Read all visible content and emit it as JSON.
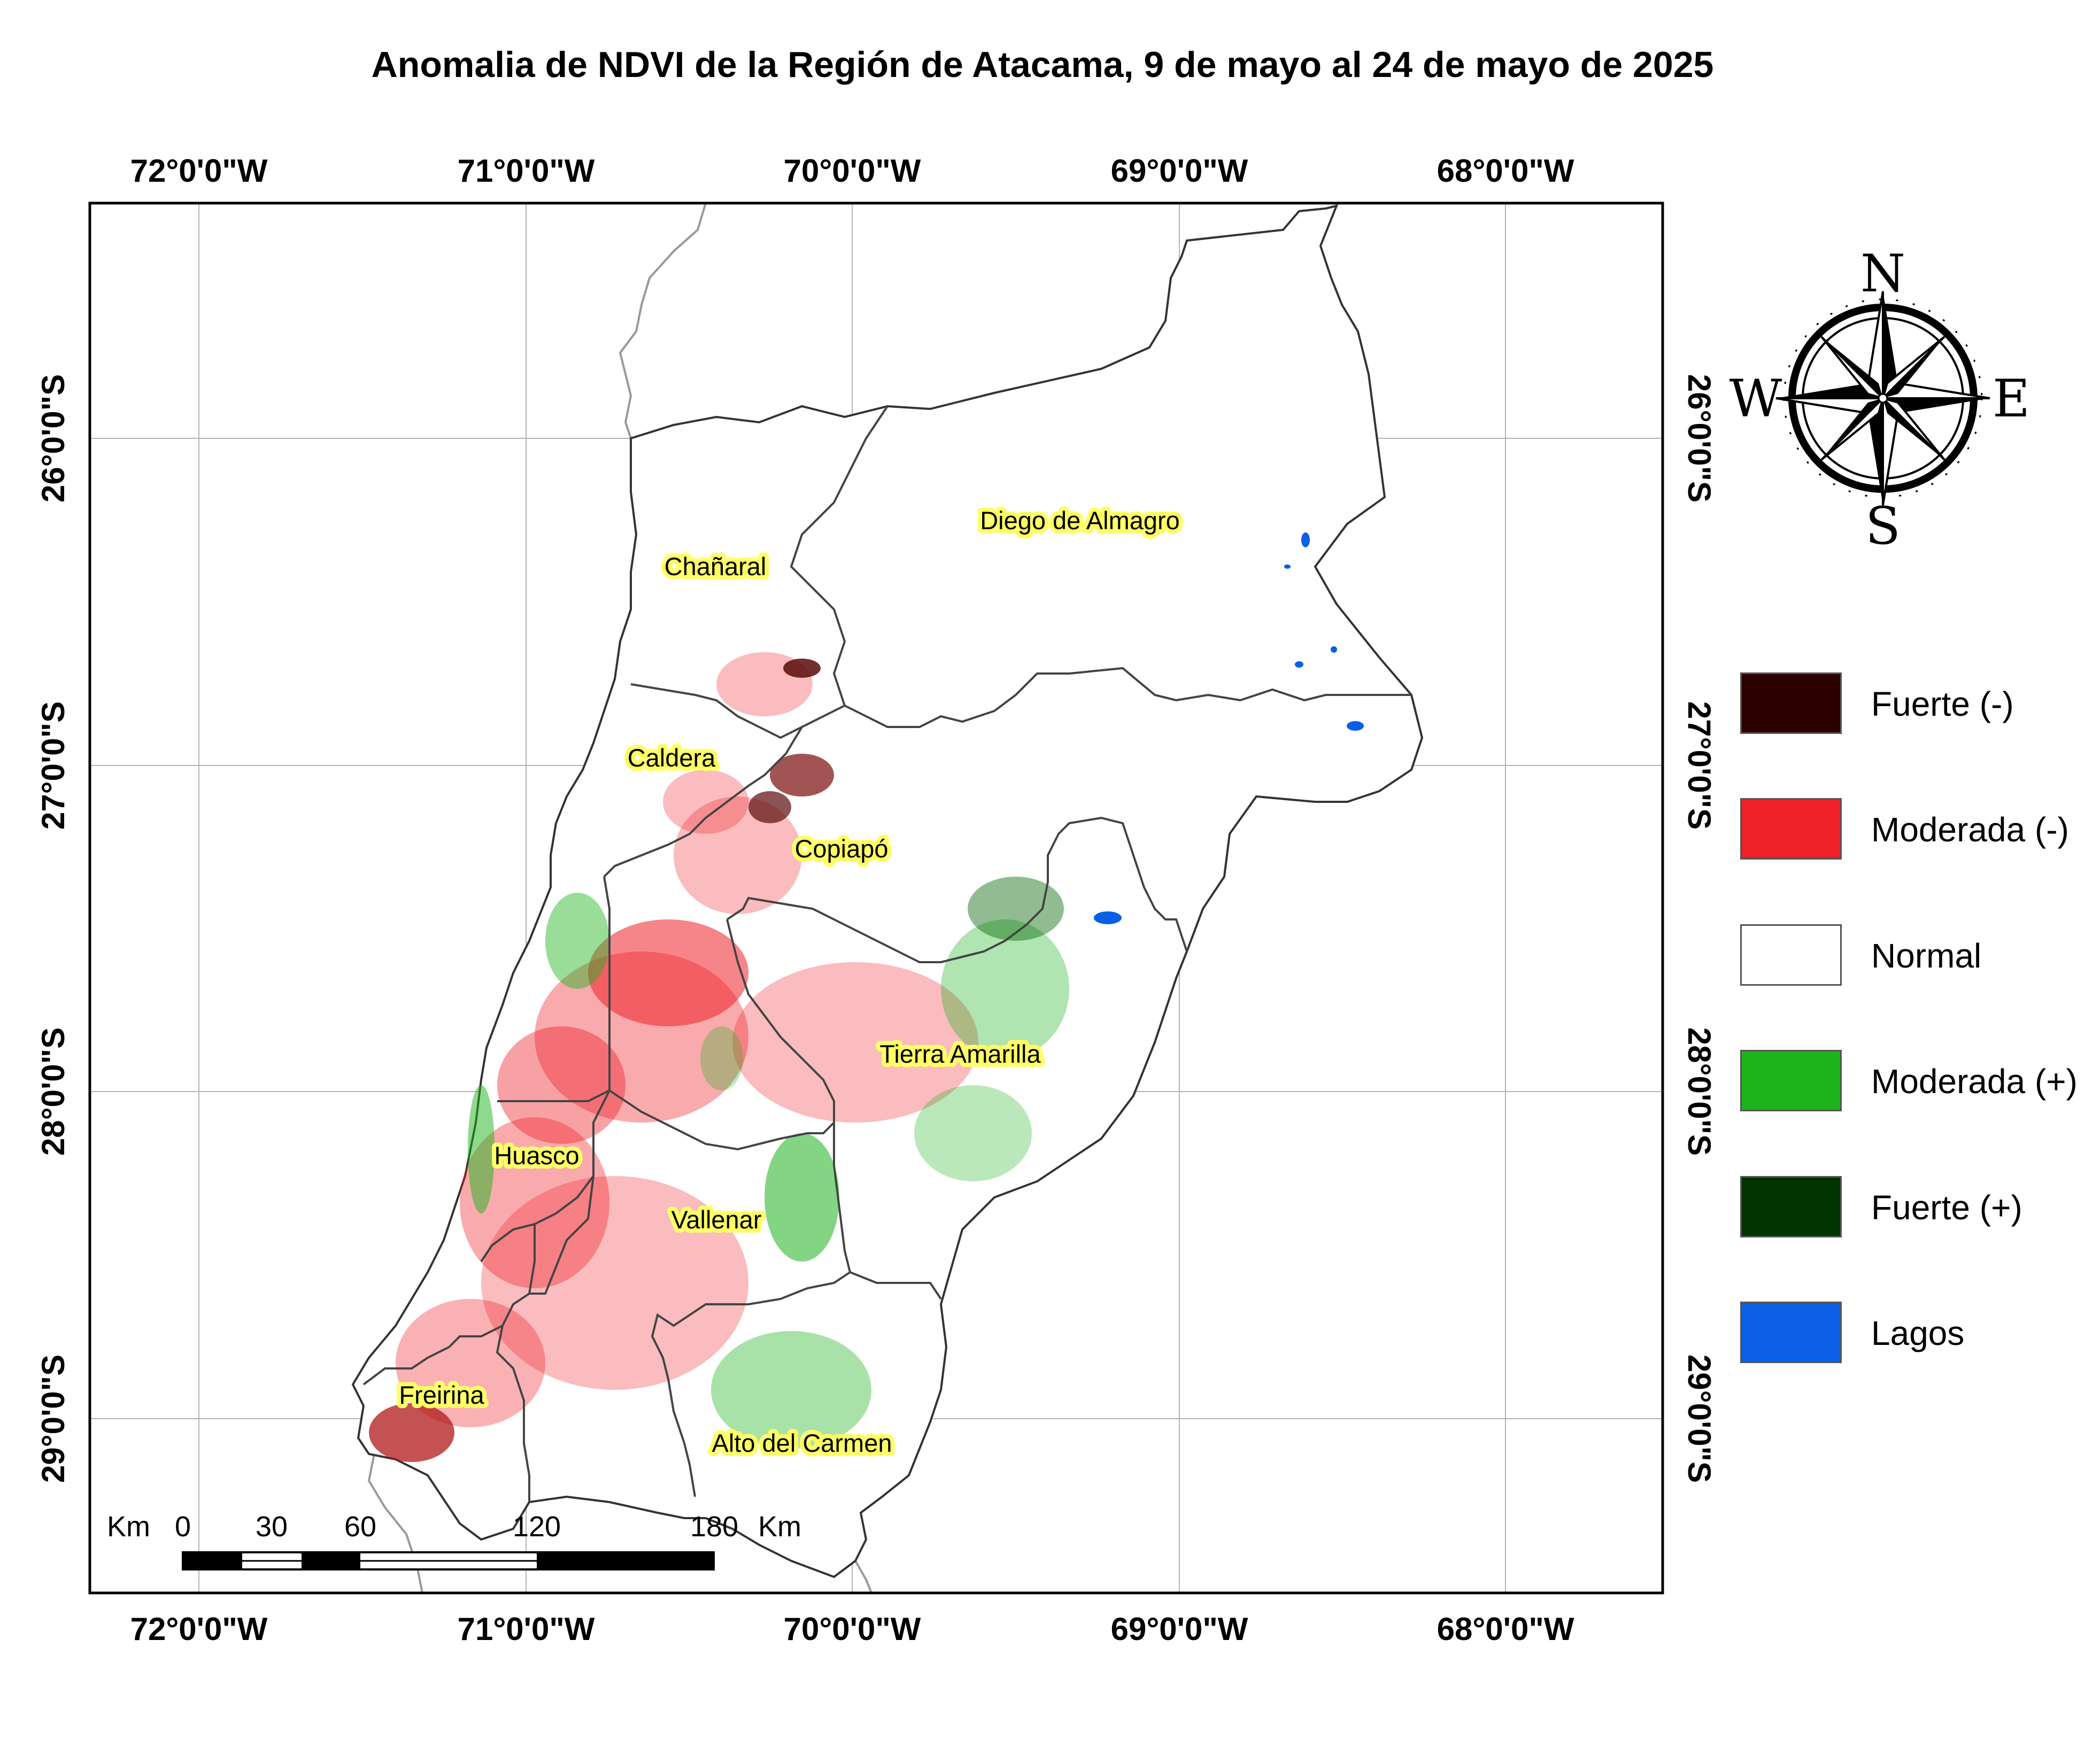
{
  "title": "Anomalia de NDVI de la Región de Atacama, 9 de mayo al 24 de mayo de 2025",
  "longitude_labels": [
    "72°0'0\"W",
    "71°0'0\"W",
    "70°0'0\"W",
    "69°0'0\"W",
    "68°0'0\"W"
  ],
  "latitude_labels": [
    "26°0'0\"S",
    "27°0'0\"S",
    "28°0'0\"S",
    "29°0'0\"S"
  ],
  "communes": [
    "Diego de Almagro",
    "Chañaral",
    "Caldera",
    "Copiapó",
    "Tierra Amarilla",
    "Huasco",
    "Vallenar",
    "Freirina",
    "Alto del Carmen"
  ],
  "legend": [
    {
      "label": "Fuerte (-)",
      "color": "#2d0000"
    },
    {
      "label": "Moderada (-)",
      "color": "#ee2028"
    },
    {
      "label": "Normal",
      "color": "#ffffff"
    },
    {
      "label": "Moderada (+)",
      "color": "#1db31d"
    },
    {
      "label": "Fuerte (+)",
      "color": "#003300"
    },
    {
      "label": "Lagos",
      "color": "#0a5fe6"
    }
  ],
  "compass": {
    "north": "N",
    "south": "S",
    "east": "E",
    "west": "W"
  },
  "scale_bar": {
    "unit_left": "Km",
    "unit_right": "Km",
    "ticks": [
      "0",
      "30",
      "60",
      "120",
      "180"
    ]
  },
  "colors": {
    "region_outline": "#333333",
    "country_border": "#999999",
    "label_highlight": "#ffff66",
    "grid": "#b4b4b4"
  }
}
